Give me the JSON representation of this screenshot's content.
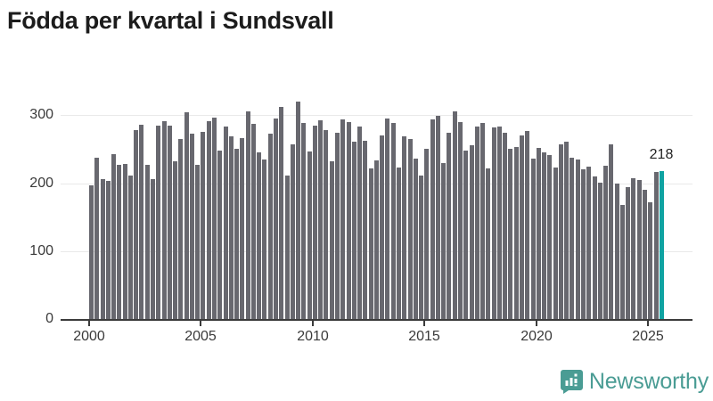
{
  "title": "Födda per kvartal i Sundsvall",
  "chart_data": {
    "type": "bar",
    "title": "Födda per kvartal i Sundsvall",
    "start_year": 2000,
    "start_quarter": 1,
    "frequency": "quarterly",
    "values": [
      197,
      238,
      206,
      204,
      243,
      227,
      228,
      212,
      278,
      286,
      227,
      206,
      285,
      291,
      285,
      233,
      265,
      304,
      273,
      227,
      276,
      291,
      297,
      248,
      284,
      269,
      251,
      267,
      306,
      288,
      246,
      235,
      273,
      295,
      313,
      212,
      258,
      320,
      289,
      247,
      285,
      293,
      279,
      232,
      275,
      294,
      290,
      261,
      284,
      262,
      222,
      234,
      271,
      295,
      289,
      223,
      269,
      265,
      237,
      211,
      251,
      294,
      300,
      230,
      274,
      306,
      290,
      248,
      256,
      283,
      289,
      222,
      282,
      284,
      274,
      251,
      254,
      271,
      277,
      236,
      252,
      246,
      242,
      223,
      258,
      261,
      238,
      235,
      220,
      224,
      210,
      201,
      226,
      258,
      199,
      168,
      195,
      207,
      205,
      190,
      172,
      217,
      218
    ],
    "highlight": {
      "index": 102,
      "value": 218,
      "label": "218"
    },
    "x_ticks": [
      2000,
      2005,
      2010,
      2015,
      2020,
      2025
    ],
    "y_ticks": [
      0,
      100,
      200,
      300
    ],
    "grid": "horizontal",
    "legend": "none",
    "colors": {
      "bar": "#68686f",
      "highlight": "#0fa3a2",
      "axis": "#3b3b3b",
      "gridline": "#e9e9e9",
      "tick_label": "#3a3a3a",
      "annotation": "#222222"
    }
  },
  "branding": {
    "name": "Newsworthy",
    "color": "#4a9c94",
    "icon": "newsworthy-bar-chart-bubble-icon"
  }
}
